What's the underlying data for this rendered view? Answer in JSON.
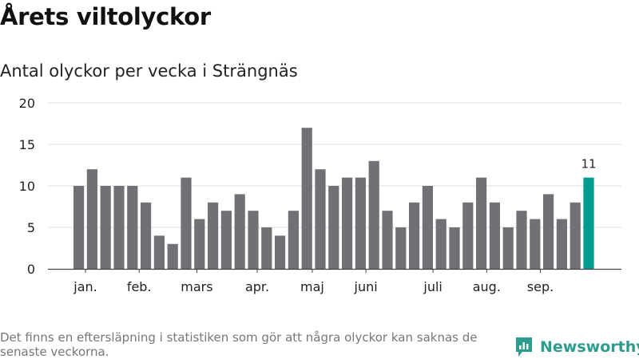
{
  "title": "Årets viltolyckor",
  "subtitle": "Antal olyckor per vecka i Strängnäs",
  "footnote": "Det finns en eftersläpning i statistiken som gör att några olyckor kan saknas de senaste veckorna.",
  "brand": {
    "name": "Newsworthy",
    "icon": "newsworthy-logo-icon"
  },
  "colors": {
    "bar": "#707075",
    "highlight": "#009c8e",
    "grid": "#dddddd",
    "axis": "#444444"
  },
  "chart_data": {
    "type": "bar",
    "ylim": [
      0,
      20
    ],
    "y_ticks": [
      0,
      5,
      10,
      15,
      20
    ],
    "grid": true,
    "values": [
      10,
      12,
      10,
      10,
      10,
      8,
      4,
      3,
      11,
      6,
      8,
      7,
      9,
      7,
      5,
      4,
      7,
      17,
      12,
      10,
      11,
      11,
      13,
      7,
      5,
      8,
      10,
      6,
      5,
      8,
      11,
      8,
      5,
      7,
      6,
      9,
      6,
      8,
      11
    ],
    "month_labels": [
      {
        "label": "jan.",
        "at_bar": 0.5
      },
      {
        "label": "feb.",
        "at_bar": 4.5
      },
      {
        "label": "mars",
        "at_bar": 8.8
      },
      {
        "label": "apr.",
        "at_bar": 13.3
      },
      {
        "label": "maj",
        "at_bar": 17.4
      },
      {
        "label": "juni",
        "at_bar": 21.4
      },
      {
        "label": "juli",
        "at_bar": 26.4
      },
      {
        "label": "aug.",
        "at_bar": 30.4
      },
      {
        "label": "sep.",
        "at_bar": 34.4
      }
    ],
    "highlight_index": 38,
    "highlight_label": "11"
  }
}
